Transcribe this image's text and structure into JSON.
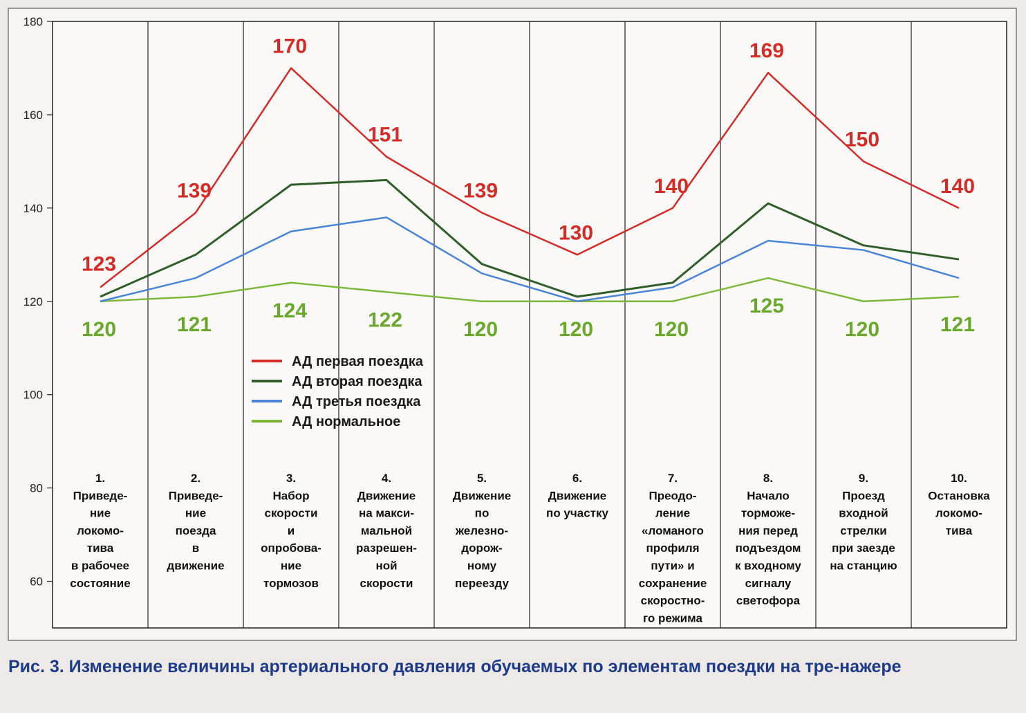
{
  "chart_data": {
    "type": "line",
    "categories": [
      [
        "1.",
        "Приведе-",
        "ние",
        "локомо-",
        "тива",
        "в рабочее",
        "состояние"
      ],
      [
        "2.",
        "Приведе-",
        "ние",
        "поезда",
        "в",
        "движение"
      ],
      [
        "3.",
        "Набор",
        "скорости",
        "и",
        "опробова-",
        "ние",
        "тормозов"
      ],
      [
        "4.",
        "Движение",
        "на макси-",
        "мальной",
        "разрешен-",
        "ной",
        "скорости"
      ],
      [
        "5.",
        "Движение",
        "по",
        "железно-",
        "дорож-",
        "ному",
        "переезду"
      ],
      [
        "6.",
        "Движение",
        "по участку"
      ],
      [
        "7.",
        "Преодо-",
        "ление",
        "«ломаного",
        "профиля",
        "пути» и",
        "сохранение",
        "скоростно-",
        "го режима"
      ],
      [
        "8.",
        "Начало",
        "торможе-",
        "ния перед",
        "подъездом",
        "к входному",
        "сигналу",
        "светофора"
      ],
      [
        "9.",
        "Проезд",
        "входной",
        "стрелки",
        "при заезде",
        "на станцию"
      ],
      [
        "10.",
        "Остановка",
        "локомо-",
        "тива"
      ]
    ],
    "series": [
      {
        "name": "АД первая поездка",
        "color": "#d52b27",
        "values": [
          123,
          139,
          170,
          151,
          139,
          130,
          140,
          169,
          150,
          140
        ],
        "labeled": true
      },
      {
        "name": "АД вторая поездка",
        "color": "#2f5e2a",
        "values": [
          121,
          130,
          145,
          146,
          128,
          121,
          124,
          141,
          132,
          129
        ],
        "labeled": false
      },
      {
        "name": "АД третья поездка",
        "color": "#4a84d6",
        "values": [
          120,
          125,
          135,
          138,
          126,
          120,
          123,
          133,
          131,
          125
        ],
        "labeled": false
      },
      {
        "name": "АД нормальное",
        "color": "#7db83a",
        "values": [
          120,
          121,
          124,
          122,
          120,
          120,
          120,
          125,
          120,
          121
        ],
        "labeled": true
      }
    ],
    "ylim": [
      50,
      180
    ],
    "yticks": [
      60,
      80,
      100,
      120,
      140,
      160,
      180
    ],
    "grid": "vertical",
    "legend_placement": "center-left"
  },
  "caption": {
    "text": "Рис. 3. Изменение величины артериального давления обучаемых по элементам поездки на тре-нажере"
  }
}
